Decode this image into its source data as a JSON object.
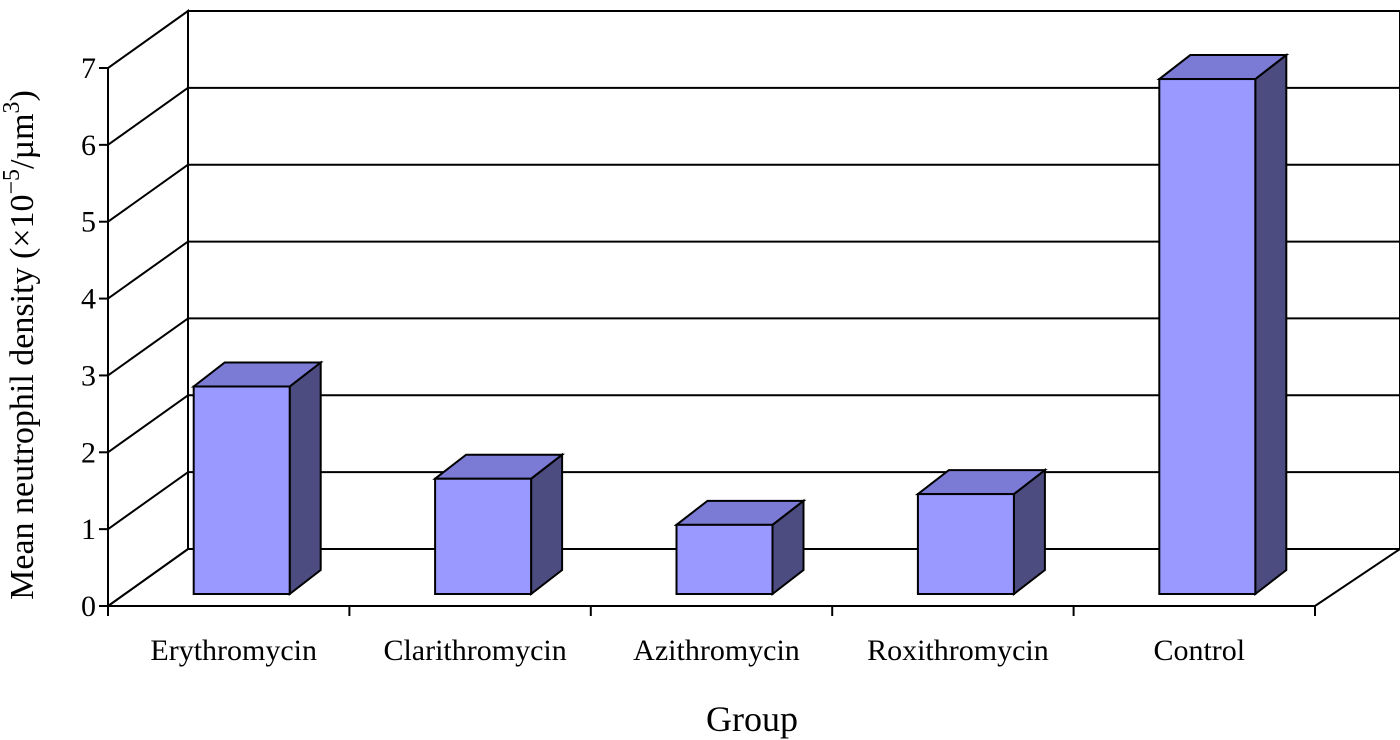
{
  "chart_data": {
    "type": "bar",
    "style": "3d-column",
    "categories": [
      "Erythromycin",
      "Clarithromycin",
      "Azithromycin",
      "Roxithromycin",
      "Control"
    ],
    "values": [
      2.7,
      1.5,
      0.9,
      1.3,
      6.7
    ],
    "xlabel": "Group",
    "ylabel": {
      "prefix": "Mean neutrophil density (×10",
      "exp1": "−5",
      "mid": "/µm",
      "exp2": "3",
      "suffix": ")"
    },
    "ylim": [
      0,
      7
    ],
    "yticks": [
      "0",
      "1",
      "2",
      "3",
      "4",
      "5",
      "6",
      "7"
    ],
    "grid": true,
    "legend": "none",
    "colors": {
      "bar_front": "#9999ff",
      "bar_top": "#7b7bd6",
      "bar_side": "#4c4c80",
      "stroke": "#000000"
    }
  }
}
